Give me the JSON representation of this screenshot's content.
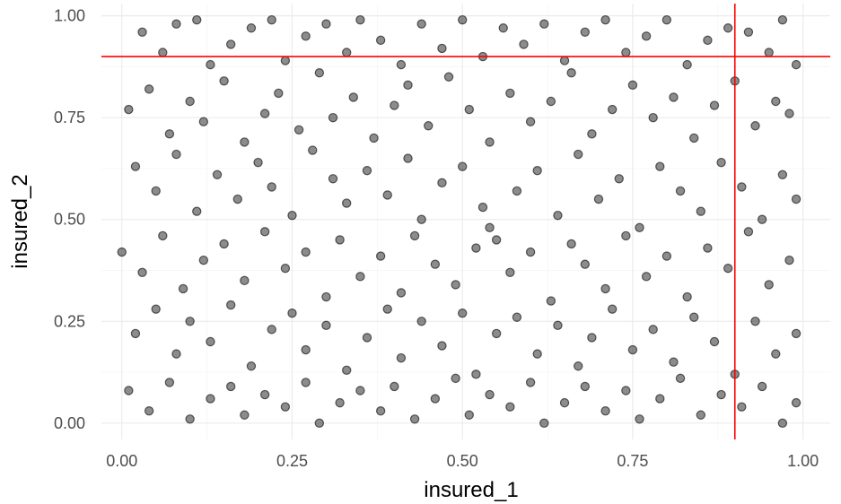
{
  "chart_data": {
    "type": "scatter",
    "title": "",
    "xlabel": "insured_1",
    "ylabel": "insured_2",
    "xlim": [
      -0.03,
      1.04
    ],
    "ylim": [
      -0.04,
      1.03
    ],
    "x_ticks": [
      0.0,
      0.25,
      0.5,
      0.75,
      1.0
    ],
    "x_tick_labels": [
      "0.00",
      "0.25",
      "0.50",
      "0.75",
      "1.00"
    ],
    "y_ticks": [
      0.0,
      0.25,
      0.5,
      0.75,
      1.0
    ],
    "y_tick_labels": [
      "0.00",
      "0.25",
      "0.50",
      "0.75",
      "1.00"
    ],
    "grid": true,
    "legend": "none",
    "theme": "minimal",
    "point_color": "#000000",
    "point_alpha": 0.5,
    "reference_lines": [
      {
        "orientation": "vertical",
        "value": 0.9,
        "color": "#ff0000"
      },
      {
        "orientation": "horizontal",
        "value": 0.9,
        "color": "#ff0000"
      }
    ],
    "series": [
      {
        "points": [
          [
            0.03,
            0.96
          ],
          [
            0.06,
            0.91
          ],
          [
            0.08,
            0.98
          ],
          [
            0.11,
            0.99
          ],
          [
            0.13,
            0.88
          ],
          [
            0.16,
            0.93
          ],
          [
            0.19,
            0.97
          ],
          [
            0.22,
            0.99
          ],
          [
            0.24,
            0.89
          ],
          [
            0.27,
            0.95
          ],
          [
            0.3,
            0.98
          ],
          [
            0.33,
            0.91
          ],
          [
            0.35,
            0.99
          ],
          [
            0.38,
            0.94
          ],
          [
            0.41,
            0.88
          ],
          [
            0.44,
            0.98
          ],
          [
            0.47,
            0.92
          ],
          [
            0.5,
            0.99
          ],
          [
            0.53,
            0.9
          ],
          [
            0.56,
            0.97
          ],
          [
            0.59,
            0.93
          ],
          [
            0.62,
            0.98
          ],
          [
            0.65,
            0.89
          ],
          [
            0.68,
            0.96
          ],
          [
            0.71,
            0.99
          ],
          [
            0.74,
            0.91
          ],
          [
            0.77,
            0.95
          ],
          [
            0.8,
            0.99
          ],
          [
            0.83,
            0.88
          ],
          [
            0.86,
            0.94
          ],
          [
            0.89,
            0.97
          ],
          [
            0.92,
            0.96
          ],
          [
            0.95,
            0.91
          ],
          [
            0.97,
            0.99
          ],
          [
            0.99,
            0.88
          ],
          [
            0.01,
            0.77
          ],
          [
            0.04,
            0.82
          ],
          [
            0.07,
            0.71
          ],
          [
            0.1,
            0.79
          ],
          [
            0.12,
            0.74
          ],
          [
            0.15,
            0.84
          ],
          [
            0.18,
            0.69
          ],
          [
            0.21,
            0.76
          ],
          [
            0.23,
            0.81
          ],
          [
            0.26,
            0.72
          ],
          [
            0.29,
            0.86
          ],
          [
            0.31,
            0.75
          ],
          [
            0.34,
            0.8
          ],
          [
            0.37,
            0.7
          ],
          [
            0.4,
            0.78
          ],
          [
            0.42,
            0.83
          ],
          [
            0.45,
            0.73
          ],
          [
            0.48,
            0.85
          ],
          [
            0.51,
            0.77
          ],
          [
            0.54,
            0.69
          ],
          [
            0.57,
            0.81
          ],
          [
            0.6,
            0.74
          ],
          [
            0.63,
            0.79
          ],
          [
            0.66,
            0.86
          ],
          [
            0.69,
            0.71
          ],
          [
            0.72,
            0.77
          ],
          [
            0.75,
            0.83
          ],
          [
            0.78,
            0.75
          ],
          [
            0.81,
            0.8
          ],
          [
            0.84,
            0.7
          ],
          [
            0.87,
            0.78
          ],
          [
            0.9,
            0.84
          ],
          [
            0.93,
            0.73
          ],
          [
            0.96,
            0.79
          ],
          [
            0.98,
            0.76
          ],
          [
            0.02,
            0.63
          ],
          [
            0.05,
            0.57
          ],
          [
            0.08,
            0.66
          ],
          [
            0.11,
            0.52
          ],
          [
            0.14,
            0.61
          ],
          [
            0.17,
            0.55
          ],
          [
            0.2,
            0.64
          ],
          [
            0.22,
            0.58
          ],
          [
            0.25,
            0.51
          ],
          [
            0.28,
            0.67
          ],
          [
            0.31,
            0.6
          ],
          [
            0.33,
            0.54
          ],
          [
            0.36,
            0.62
          ],
          [
            0.39,
            0.56
          ],
          [
            0.42,
            0.65
          ],
          [
            0.44,
            0.5
          ],
          [
            0.47,
            0.59
          ],
          [
            0.5,
            0.63
          ],
          [
            0.53,
            0.53
          ],
          [
            0.55,
            0.45
          ],
          [
            0.58,
            0.57
          ],
          [
            0.61,
            0.62
          ],
          [
            0.64,
            0.51
          ],
          [
            0.67,
            0.66
          ],
          [
            0.7,
            0.55
          ],
          [
            0.73,
            0.6
          ],
          [
            0.76,
            0.48
          ],
          [
            0.79,
            0.63
          ],
          [
            0.82,
            0.57
          ],
          [
            0.85,
            0.52
          ],
          [
            0.88,
            0.64
          ],
          [
            0.91,
            0.58
          ],
          [
            0.94,
            0.5
          ],
          [
            0.97,
            0.61
          ],
          [
            0.99,
            0.55
          ],
          [
            0.0,
            0.42
          ],
          [
            0.03,
            0.37
          ],
          [
            0.06,
            0.46
          ],
          [
            0.09,
            0.33
          ],
          [
            0.12,
            0.4
          ],
          [
            0.15,
            0.44
          ],
          [
            0.18,
            0.35
          ],
          [
            0.21,
            0.47
          ],
          [
            0.24,
            0.38
          ],
          [
            0.27,
            0.42
          ],
          [
            0.3,
            0.31
          ],
          [
            0.32,
            0.45
          ],
          [
            0.35,
            0.36
          ],
          [
            0.38,
            0.41
          ],
          [
            0.41,
            0.32
          ],
          [
            0.43,
            0.46
          ],
          [
            0.46,
            0.39
          ],
          [
            0.49,
            0.34
          ],
          [
            0.52,
            0.43
          ],
          [
            0.54,
            0.48
          ],
          [
            0.57,
            0.37
          ],
          [
            0.6,
            0.42
          ],
          [
            0.63,
            0.3
          ],
          [
            0.66,
            0.44
          ],
          [
            0.68,
            0.39
          ],
          [
            0.71,
            0.33
          ],
          [
            0.74,
            0.46
          ],
          [
            0.77,
            0.36
          ],
          [
            0.8,
            0.41
          ],
          [
            0.83,
            0.31
          ],
          [
            0.86,
            0.43
          ],
          [
            0.89,
            0.38
          ],
          [
            0.92,
            0.47
          ],
          [
            0.95,
            0.34
          ],
          [
            0.98,
            0.4
          ],
          [
            0.02,
            0.22
          ],
          [
            0.05,
            0.28
          ],
          [
            0.08,
            0.17
          ],
          [
            0.1,
            0.25
          ],
          [
            0.13,
            0.2
          ],
          [
            0.16,
            0.29
          ],
          [
            0.19,
            0.14
          ],
          [
            0.22,
            0.23
          ],
          [
            0.25,
            0.27
          ],
          [
            0.27,
            0.18
          ],
          [
            0.3,
            0.24
          ],
          [
            0.33,
            0.13
          ],
          [
            0.36,
            0.21
          ],
          [
            0.39,
            0.28
          ],
          [
            0.41,
            0.16
          ],
          [
            0.44,
            0.25
          ],
          [
            0.47,
            0.19
          ],
          [
            0.5,
            0.27
          ],
          [
            0.52,
            0.12
          ],
          [
            0.55,
            0.22
          ],
          [
            0.58,
            0.26
          ],
          [
            0.61,
            0.17
          ],
          [
            0.64,
            0.24
          ],
          [
            0.67,
            0.14
          ],
          [
            0.69,
            0.21
          ],
          [
            0.72,
            0.28
          ],
          [
            0.75,
            0.18
          ],
          [
            0.78,
            0.23
          ],
          [
            0.81,
            0.15
          ],
          [
            0.84,
            0.26
          ],
          [
            0.87,
            0.2
          ],
          [
            0.9,
            0.12
          ],
          [
            0.93,
            0.25
          ],
          [
            0.96,
            0.17
          ],
          [
            0.99,
            0.22
          ],
          [
            0.01,
            0.08
          ],
          [
            0.04,
            0.03
          ],
          [
            0.07,
            0.1
          ],
          [
            0.1,
            0.01
          ],
          [
            0.13,
            0.06
          ],
          [
            0.16,
            0.09
          ],
          [
            0.18,
            0.02
          ],
          [
            0.21,
            0.07
          ],
          [
            0.24,
            0.04
          ],
          [
            0.27,
            0.1
          ],
          [
            0.29,
            0.0
          ],
          [
            0.32,
            0.05
          ],
          [
            0.35,
            0.08
          ],
          [
            0.38,
            0.03
          ],
          [
            0.4,
            0.09
          ],
          [
            0.43,
            0.01
          ],
          [
            0.46,
            0.06
          ],
          [
            0.49,
            0.11
          ],
          [
            0.51,
            0.02
          ],
          [
            0.54,
            0.07
          ],
          [
            0.57,
            0.04
          ],
          [
            0.6,
            0.1
          ],
          [
            0.62,
            0.0
          ],
          [
            0.65,
            0.05
          ],
          [
            0.68,
            0.09
          ],
          [
            0.71,
            0.03
          ],
          [
            0.74,
            0.08
          ],
          [
            0.76,
            0.01
          ],
          [
            0.79,
            0.06
          ],
          [
            0.82,
            0.11
          ],
          [
            0.85,
            0.02
          ],
          [
            0.88,
            0.07
          ],
          [
            0.91,
            0.04
          ],
          [
            0.94,
            0.09
          ],
          [
            0.97,
            0.0
          ],
          [
            0.99,
            0.05
          ]
        ]
      }
    ]
  }
}
